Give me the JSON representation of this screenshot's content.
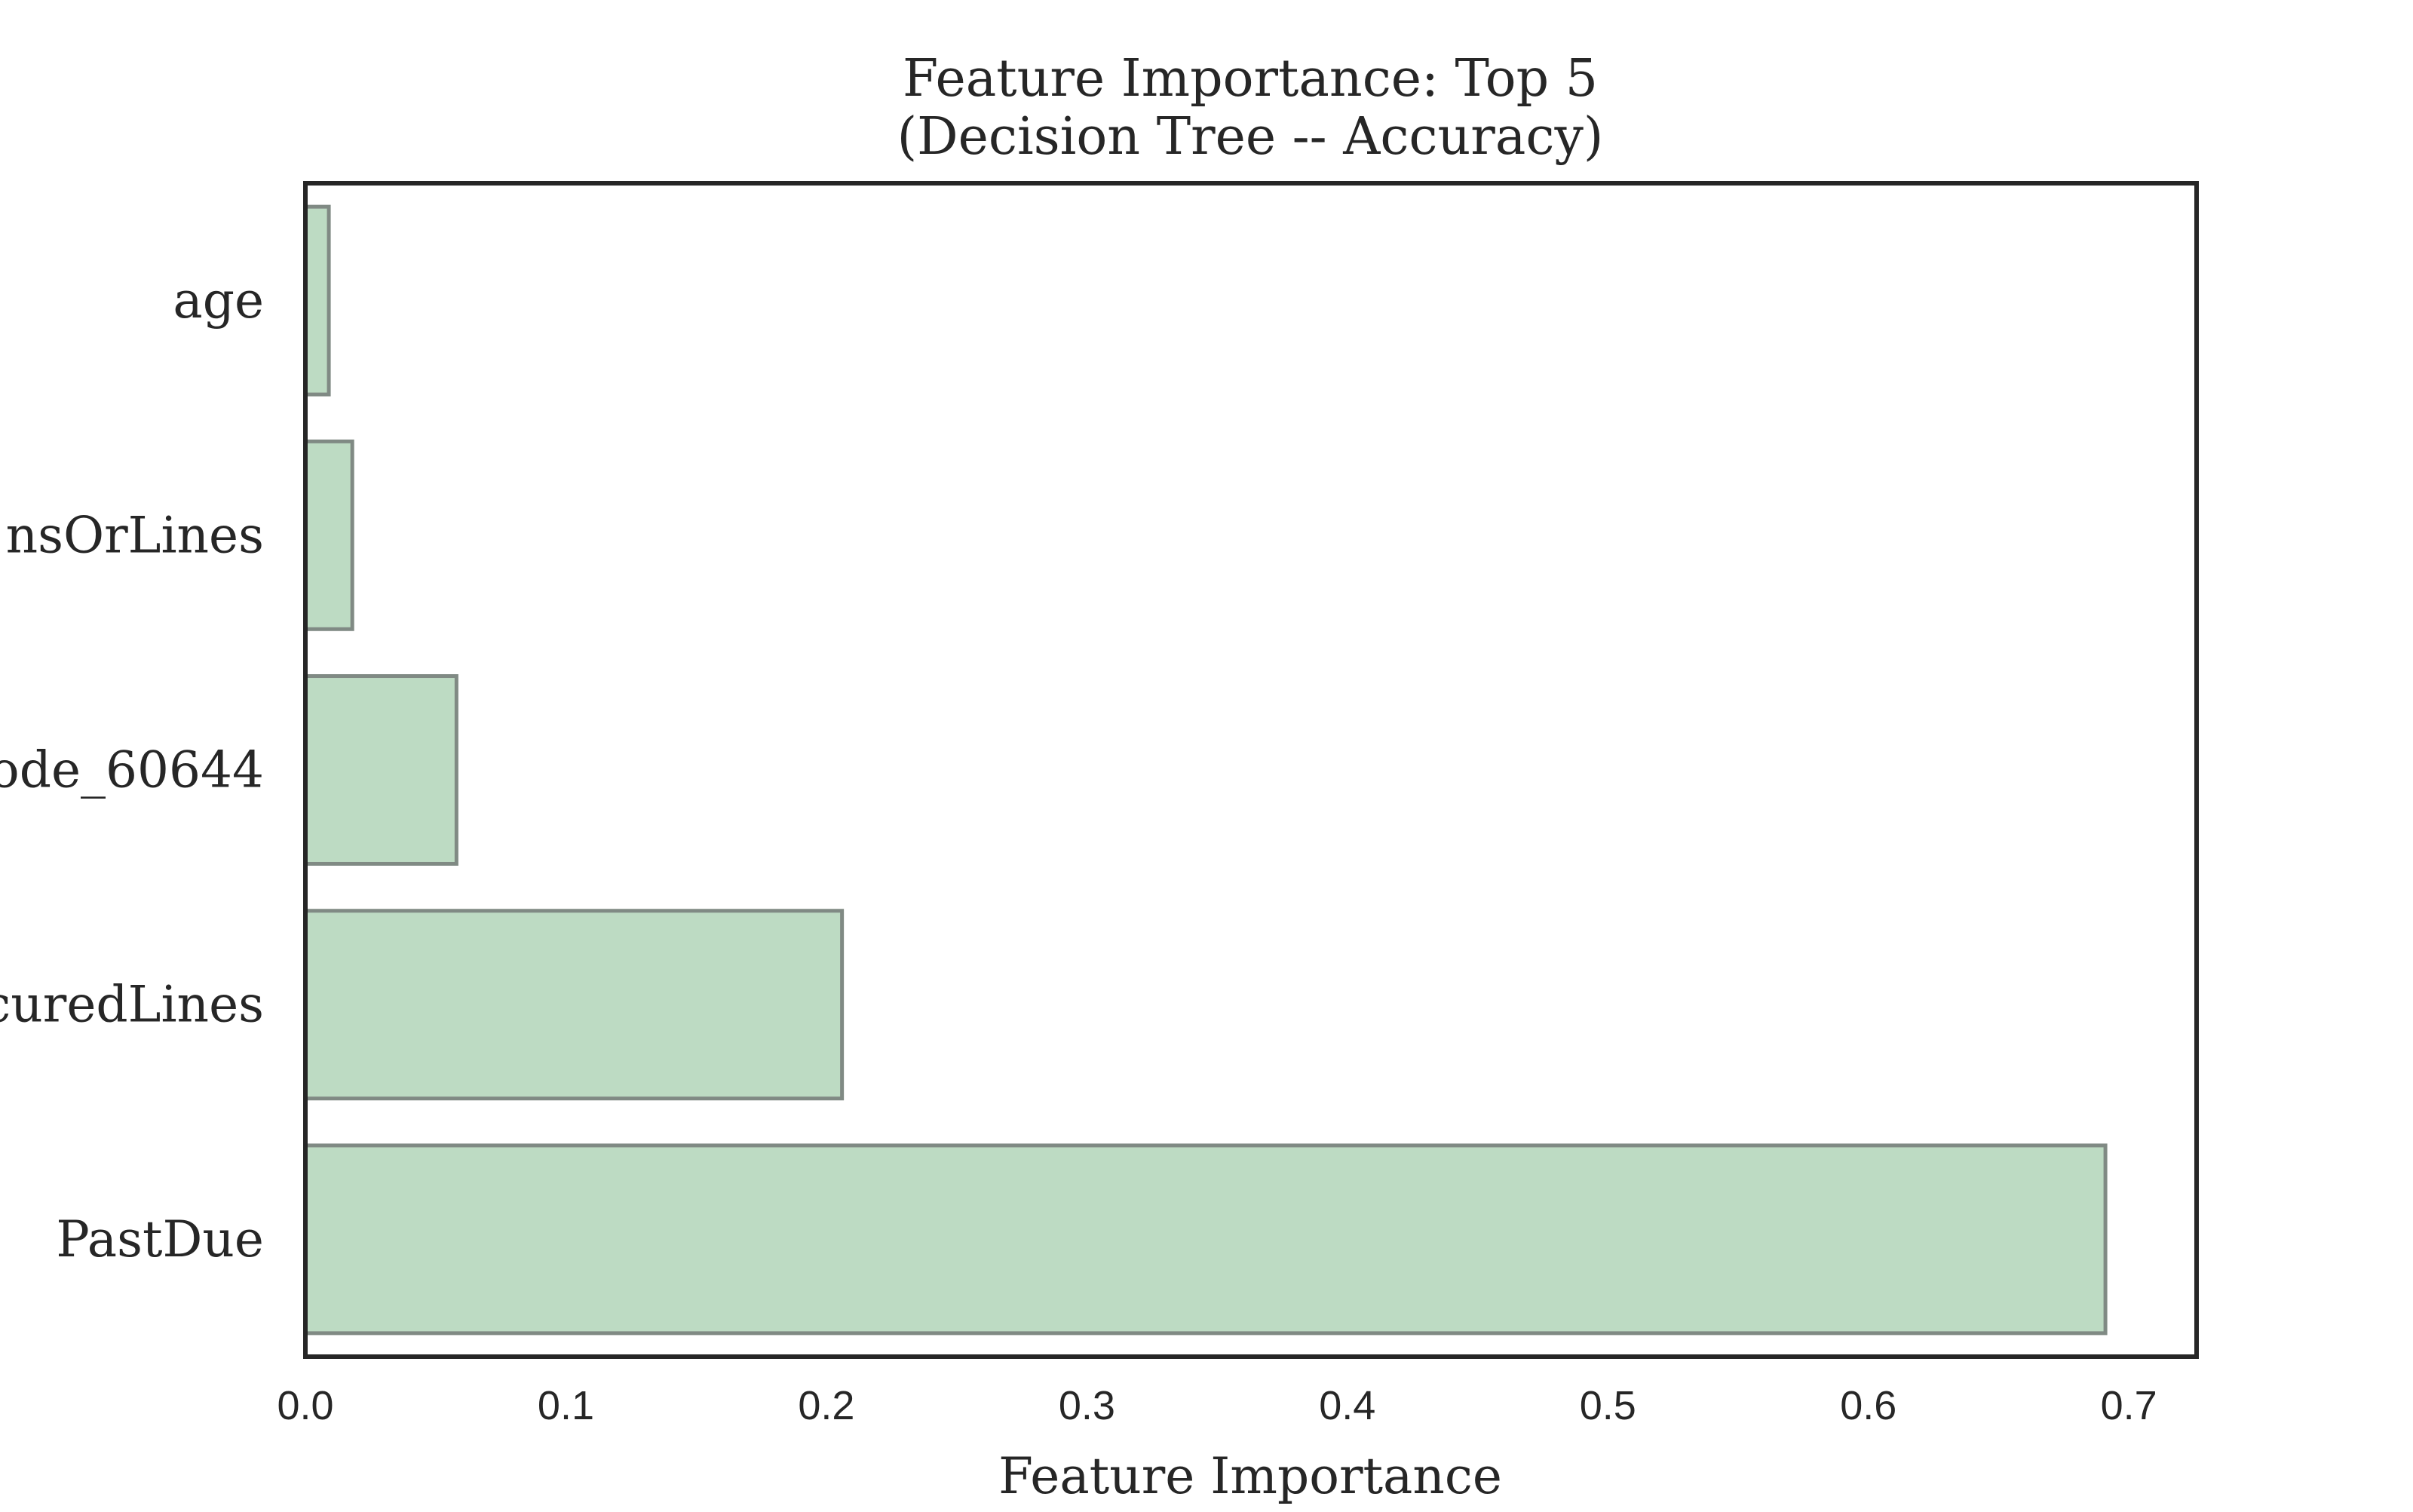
{
  "chart_data": {
    "type": "bar",
    "orientation": "horizontal",
    "title": "Feature Importance: Top 5",
    "subtitle": "(Decision Tree -- Accuracy)",
    "xlabel": "Feature Importance",
    "ylabel": "",
    "categories": [
      "age",
      "nsOrLines",
      "ode_60644",
      "curedLines",
      "PastDue"
    ],
    "values": [
      0.009,
      0.018,
      0.058,
      0.206,
      0.691
    ],
    "xlim": [
      0.0,
      0.726
    ],
    "xticks": [
      0.0,
      0.1,
      0.2,
      0.3,
      0.4,
      0.5,
      0.6,
      0.7
    ],
    "xtick_labels": [
      "0.0",
      "0.1",
      "0.2",
      "0.3",
      "0.4",
      "0.5",
      "0.6",
      "0.7"
    ],
    "grid": false,
    "bar_color": "#bddbc3",
    "bar_edge_color": "#808a84"
  }
}
